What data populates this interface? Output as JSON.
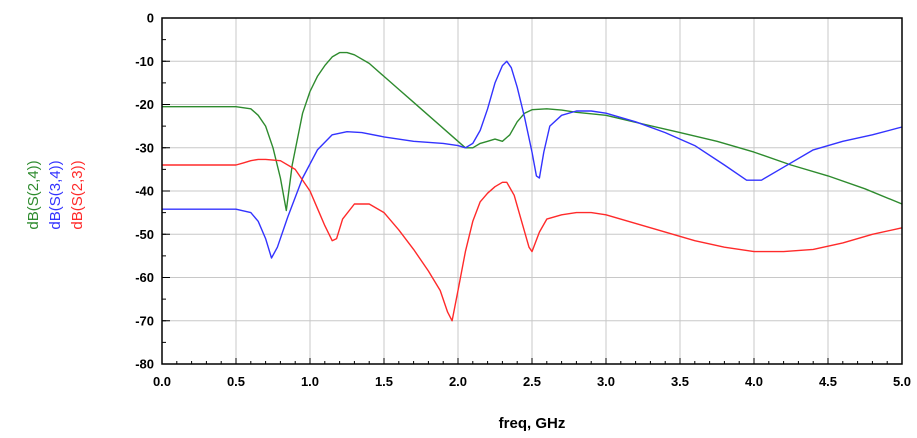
{
  "chart_data": {
    "type": "line",
    "title": "",
    "xlabel": "freq, GHz",
    "ylabel_entries": [
      {
        "text": "dB(S(2,4))",
        "color": "#2e8b2e"
      },
      {
        "text": "dB(S(3,4))",
        "color": "#3333ff"
      },
      {
        "text": "dB(S(2,3))",
        "color": "#ff2a2a"
      }
    ],
    "xlim": [
      0,
      5
    ],
    "ylim": [
      -80,
      0
    ],
    "xticks": [
      "0.0",
      "0.5",
      "1.0",
      "1.5",
      "2.0",
      "2.5",
      "3.0",
      "3.5",
      "4.0",
      "4.5",
      "5.0"
    ],
    "xtick_values": [
      0,
      0.5,
      1,
      1.5,
      2,
      2.5,
      3,
      3.5,
      4,
      4.5,
      5
    ],
    "yticks": [
      "0",
      "-10",
      "-20",
      "-30",
      "-40",
      "-50",
      "-60",
      "-70",
      "-80"
    ],
    "ytick_values": [
      0,
      -10,
      -20,
      -30,
      -40,
      -50,
      -60,
      -70,
      -80
    ],
    "grid": true,
    "series": [
      {
        "name": "dB(S(2,4))",
        "color": "#2e8b2e",
        "x": [
          0.0,
          0.5,
          0.6,
          0.65,
          0.7,
          0.75,
          0.8,
          0.84,
          0.88,
          0.95,
          1.0,
          1.05,
          1.1,
          1.15,
          1.2,
          1.25,
          1.3,
          1.4,
          1.5,
          1.6,
          1.7,
          1.8,
          1.9,
          2.0,
          2.05,
          2.1,
          2.15,
          2.2,
          2.25,
          2.3,
          2.35,
          2.4,
          2.45,
          2.5,
          2.6,
          2.7,
          2.8,
          3.0,
          3.25,
          3.5,
          3.75,
          4.0,
          4.25,
          4.5,
          4.75,
          5.0
        ],
        "y": [
          -20.5,
          -20.5,
          -21,
          -22.5,
          -25,
          -30,
          -37,
          -44.5,
          -34,
          -22,
          -17,
          -13.5,
          -11,
          -9,
          -8,
          -8,
          -8.5,
          -10.5,
          -13.5,
          -16.5,
          -19.5,
          -22.5,
          -25.5,
          -28.5,
          -30,
          -30,
          -29,
          -28.5,
          -28,
          -28.5,
          -27,
          -24,
          -22,
          -21.2,
          -21,
          -21.3,
          -21.8,
          -22.5,
          -24.5,
          -26.5,
          -28.5,
          -31,
          -34,
          -36.5,
          -39.5,
          -43
        ]
      },
      {
        "name": "dB(S(3,4))",
        "color": "#3333ff",
        "x": [
          0.0,
          0.5,
          0.6,
          0.65,
          0.7,
          0.74,
          0.78,
          0.85,
          0.95,
          1.05,
          1.15,
          1.25,
          1.35,
          1.5,
          1.7,
          1.9,
          2.0,
          2.05,
          2.1,
          2.15,
          2.2,
          2.25,
          2.3,
          2.33,
          2.36,
          2.4,
          2.45,
          2.5,
          2.53,
          2.55,
          2.58,
          2.62,
          2.7,
          2.8,
          2.9,
          3.0,
          3.2,
          3.4,
          3.6,
          3.8,
          3.95,
          4.05,
          4.2,
          4.4,
          4.6,
          4.8,
          5.0
        ],
        "y": [
          -44.2,
          -44.2,
          -45,
          -47,
          -51,
          -55.5,
          -53,
          -46,
          -37,
          -30.5,
          -27,
          -26.3,
          -26.5,
          -27.5,
          -28.5,
          -29,
          -29.5,
          -30,
          -29,
          -26,
          -21,
          -15,
          -11,
          -10,
          -11.5,
          -16,
          -23,
          -31,
          -36.5,
          -37,
          -31,
          -25,
          -22.5,
          -21.5,
          -21.5,
          -22,
          -24,
          -26.5,
          -29.5,
          -34,
          -37.5,
          -37.5,
          -34.5,
          -30.5,
          -28.5,
          -27,
          -25.2
        ]
      },
      {
        "name": "dB(S(2,3))",
        "color": "#ff2a2a",
        "x": [
          0.0,
          0.5,
          0.55,
          0.6,
          0.65,
          0.7,
          0.8,
          0.9,
          1.0,
          1.05,
          1.1,
          1.15,
          1.18,
          1.22,
          1.3,
          1.4,
          1.5,
          1.6,
          1.7,
          1.8,
          1.88,
          1.93,
          1.96,
          2.0,
          2.05,
          2.1,
          2.15,
          2.2,
          2.25,
          2.3,
          2.33,
          2.38,
          2.43,
          2.48,
          2.5,
          2.55,
          2.6,
          2.7,
          2.8,
          2.9,
          3.0,
          3.2,
          3.4,
          3.6,
          3.8,
          4.0,
          4.2,
          4.4,
          4.6,
          4.8,
          5.0
        ],
        "y": [
          -34,
          -34,
          -33.5,
          -33,
          -32.7,
          -32.7,
          -33,
          -35,
          -40,
          -44,
          -48,
          -51.5,
          -51,
          -46.5,
          -43,
          -43,
          -45,
          -49,
          -53.5,
          -58.5,
          -63,
          -68,
          -70,
          -63,
          -54,
          -47,
          -42.5,
          -40.5,
          -39,
          -38,
          -38,
          -41,
          -47,
          -53,
          -54,
          -49.5,
          -46.5,
          -45.5,
          -45,
          -45,
          -45.5,
          -47.5,
          -49.5,
          -51.5,
          -53,
          -54,
          -54,
          -53.5,
          -52,
          -50,
          -48.5
        ]
      }
    ]
  }
}
